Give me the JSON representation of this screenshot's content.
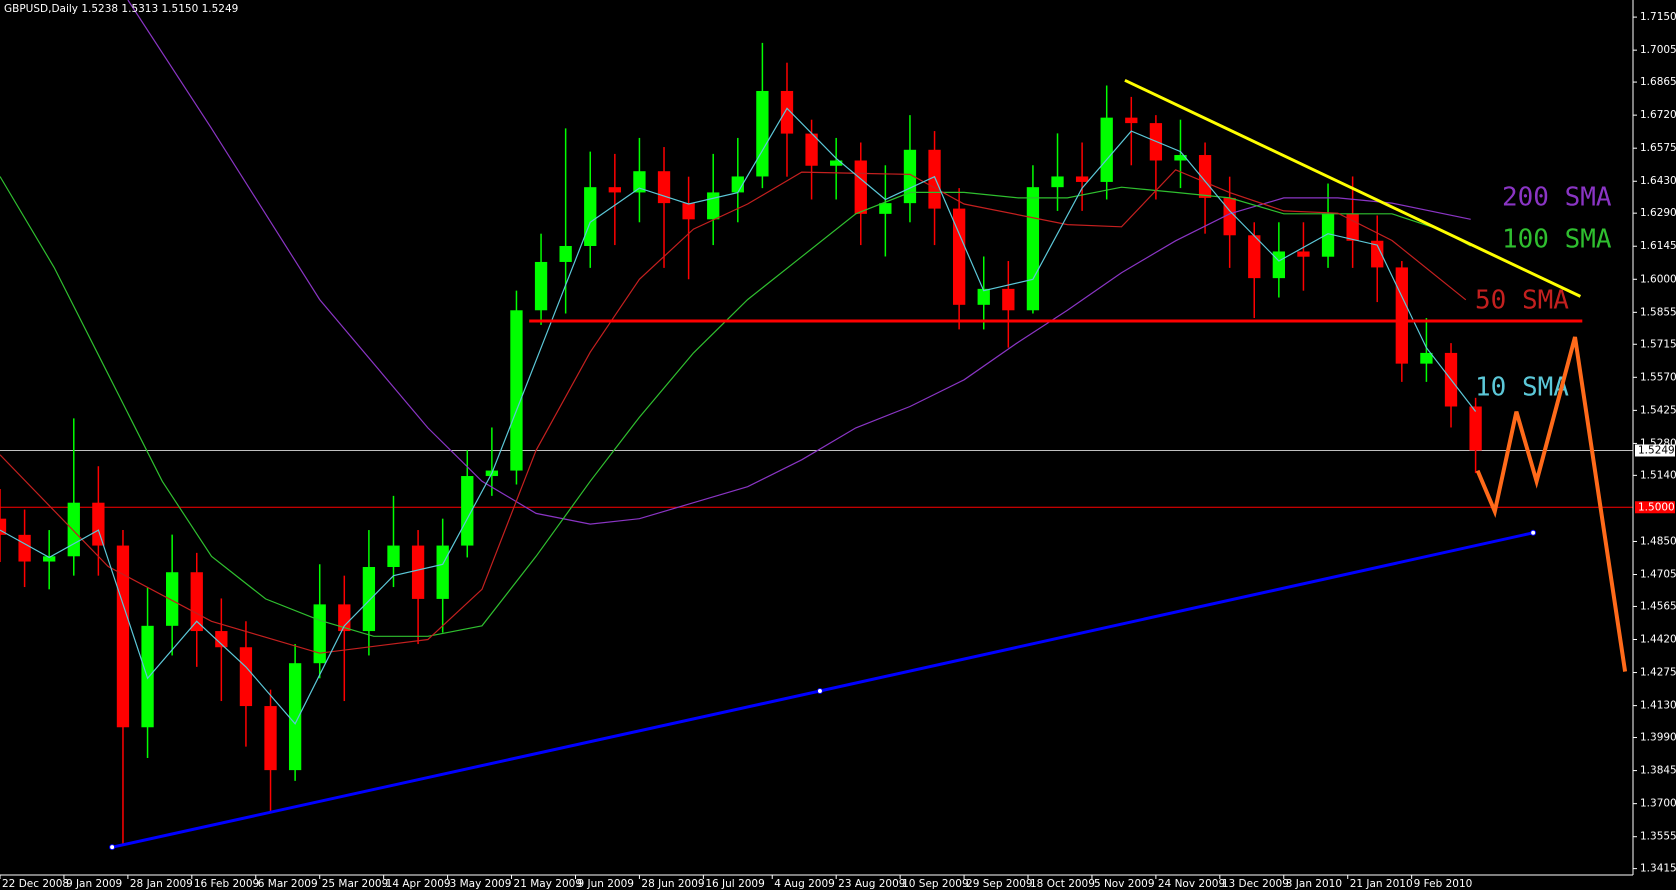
{
  "chart_data": {
    "type": "candlestick",
    "title": "GBPUSD,Daily  1.5238 1.5313 1.5150 1.5249",
    "xlim": [
      0,
      332
    ],
    "ylim": [
      1.3387,
      1.7225
    ],
    "xticks": [
      {
        "value": 0,
        "label": "22 Dec 2008"
      },
      {
        "value": 13,
        "label": "9 Jan 2009"
      },
      {
        "value": 26,
        "label": "28 Jan 2009"
      },
      {
        "value": 39,
        "label": "16 Feb 2009"
      },
      {
        "value": 52,
        "label": "6 Mar 2009"
      },
      {
        "value": 65,
        "label": "25 Mar 2009"
      },
      {
        "value": 78,
        "label": "14 Apr 2009"
      },
      {
        "value": 91,
        "label": "3 May 2009"
      },
      {
        "value": 104,
        "label": "21 May 2009"
      },
      {
        "value": 117,
        "label": "9 Jun 2009"
      },
      {
        "value": 130,
        "label": "28 Jun 2009"
      },
      {
        "value": 143,
        "label": "16 Jul 2009"
      },
      {
        "value": 157,
        "label": "4 Aug 2009"
      },
      {
        "value": 170,
        "label": "23 Aug 2009"
      },
      {
        "value": 183,
        "label": "10 Sep 2009"
      },
      {
        "value": 196,
        "label": "29 Sep 2009"
      },
      {
        "value": 209,
        "label": "18 Oct 2009"
      },
      {
        "value": 222,
        "label": "5 Nov 2009"
      },
      {
        "value": 235,
        "label": "24 Nov 2009"
      },
      {
        "value": 248,
        "label": "13 Dec 2009"
      },
      {
        "value": 261,
        "label": "3 Jan 2010"
      },
      {
        "value": 274,
        "label": "21 Jan 2010"
      },
      {
        "value": 287,
        "label": "9 Feb 2010"
      }
    ],
    "yticks": [
      {
        "value": 1.715,
        "label": "1.7150"
      },
      1.7005,
      1.6865,
      {
        "value": 1.672,
        "label": "1.6720"
      },
      1.6575,
      {
        "value": 1.643,
        "label": "1.6430"
      },
      {
        "value": 1.629,
        "label": "1.6290"
      },
      1.6145,
      {
        "value": 1.6,
        "label": "1.6000"
      },
      1.5855,
      1.5715,
      {
        "value": 1.557,
        "label": "1.5570"
      },
      1.5425,
      {
        "value": 1.528,
        "label": "1.5280"
      },
      {
        "value": 1.514,
        "label": "1.5140"
      },
      {
        "value": 1.485,
        "label": "1.4850"
      },
      1.4705,
      1.4565,
      {
        "value": 1.442,
        "label": "1.4420"
      },
      1.4275,
      {
        "value": 1.413,
        "label": "1.4130"
      },
      {
        "value": 1.399,
        "label": "1.3990"
      },
      1.3845,
      {
        "value": 1.37,
        "label": "1.3700"
      },
      1.3555,
      1.3415
    ],
    "candles": {
      "up_color": "#00ff00",
      "down_color": "#ff0000",
      "x": [
        0,
        5,
        10,
        15,
        20,
        25,
        30,
        35,
        40,
        45,
        50,
        55,
        60,
        65,
        70,
        75,
        80,
        85,
        90,
        95,
        100,
        105,
        110,
        115,
        120,
        125,
        130,
        135,
        140,
        145,
        150,
        155,
        160,
        165,
        170,
        175,
        180,
        185,
        190,
        195,
        200,
        205,
        210,
        215,
        220,
        225,
        230,
        235,
        240,
        245,
        250,
        255,
        260,
        265,
        270,
        275,
        280,
        285,
        290,
        295,
        300
      ],
      "open": [
        1.495,
        1.4879,
        1.4762,
        1.4785,
        1.502,
        1.4832,
        1.4035,
        1.448,
        1.4715,
        1.4457,
        1.4386,
        1.4128,
        1.3847,
        1.4316,
        1.4574,
        1.4457,
        1.4738,
        1.4832,
        1.4598,
        1.4832,
        1.5137,
        1.5161,
        1.5864,
        1.6076,
        1.6146,
        1.6404,
        1.6381,
        1.6474,
        1.6334,
        1.6263,
        1.6381,
        1.6451,
        1.6826,
        1.6639,
        1.6498,
        1.6521,
        1.6287,
        1.6334,
        1.6568,
        1.631,
        1.5888,
        1.5958,
        1.5864,
        1.6404,
        1.6451,
        1.6427,
        1.6709,
        1.6685,
        1.6521,
        1.6545,
        1.6357,
        1.6193,
        1.6005,
        1.6122,
        1.6099,
        1.6287,
        1.6169,
        1.6052,
        1.563,
        1.5677,
        1.5442
      ],
      "high": [
        1.508,
        1.499,
        1.49,
        1.539,
        1.518,
        1.49,
        1.465,
        1.488,
        1.48,
        1.46,
        1.45,
        1.42,
        1.44,
        1.475,
        1.47,
        1.49,
        1.505,
        1.49,
        1.495,
        1.525,
        1.535,
        1.595,
        1.62,
        1.6662,
        1.656,
        1.655,
        1.662,
        1.658,
        1.645,
        1.655,
        1.662,
        1.7037,
        1.695,
        1.67,
        1.662,
        1.66,
        1.65,
        1.672,
        1.665,
        1.64,
        1.61,
        1.608,
        1.65,
        1.664,
        1.66,
        1.685,
        1.68,
        1.672,
        1.67,
        1.66,
        1.645,
        1.625,
        1.625,
        1.625,
        1.642,
        1.6451,
        1.628,
        1.608,
        1.583,
        1.572,
        1.548
      ],
      "low": [
        1.476,
        1.465,
        1.464,
        1.47,
        1.47,
        1.3518,
        1.39,
        1.435,
        1.43,
        1.415,
        1.395,
        1.3659,
        1.38,
        1.425,
        1.415,
        1.435,
        1.465,
        1.44,
        1.445,
        1.478,
        1.505,
        1.51,
        1.58,
        1.585,
        1.605,
        1.615,
        1.625,
        1.605,
        1.6,
        1.615,
        1.625,
        1.64,
        1.645,
        1.635,
        1.635,
        1.615,
        1.61,
        1.625,
        1.615,
        1.578,
        1.578,
        1.57,
        1.585,
        1.63,
        1.63,
        1.635,
        1.65,
        1.635,
        1.64,
        1.62,
        1.605,
        1.583,
        1.592,
        1.595,
        1.605,
        1.605,
        1.59,
        1.555,
        1.555,
        1.535,
        1.515
      ],
      "close": [
        1.4879,
        1.4762,
        1.4785,
        1.502,
        1.4832,
        1.4035,
        1.448,
        1.4715,
        1.4457,
        1.4386,
        1.4128,
        1.3847,
        1.4316,
        1.4574,
        1.4457,
        1.4738,
        1.4832,
        1.4598,
        1.4832,
        1.5137,
        1.5161,
        1.5864,
        1.6076,
        1.6146,
        1.6404,
        1.6381,
        1.6474,
        1.6334,
        1.6263,
        1.6381,
        1.6451,
        1.6826,
        1.6639,
        1.6498,
        1.6521,
        1.6287,
        1.6334,
        1.6568,
        1.631,
        1.5888,
        1.5958,
        1.5864,
        1.6404,
        1.6451,
        1.6427,
        1.6709,
        1.6685,
        1.6521,
        1.6545,
        1.6357,
        1.6193,
        1.6005,
        1.6122,
        1.6099,
        1.6287,
        1.6169,
        1.6052,
        1.563,
        1.5677,
        1.5442,
        1.5249
      ]
    },
    "series": [
      {
        "name": "200 SMA",
        "color": "#8a35c4",
        "x": [
          26,
          43,
          65,
          87,
          98,
          109,
          120,
          130,
          141,
          152,
          163,
          174,
          185,
          196,
          207,
          217,
          228,
          239,
          250,
          261,
          272,
          283,
          299
        ],
        "values": [
          1.7225,
          1.6662,
          1.5911,
          1.5348,
          1.5114,
          1.4973,
          1.4926,
          1.495,
          1.502,
          1.509,
          1.5208,
          1.5348,
          1.5442,
          1.5559,
          1.5724,
          1.5864,
          1.6029,
          1.6169,
          1.6287,
          1.6357,
          1.6357,
          1.6334,
          1.6263
        ]
      },
      {
        "name": "100 SMA",
        "color": "#2fbf2f",
        "x": [
          0,
          11,
          22,
          33,
          43,
          54,
          65,
          76,
          87,
          98,
          109,
          120,
          130,
          141,
          152,
          163,
          174,
          185,
          196,
          207,
          217,
          228,
          239,
          250,
          261,
          272,
          283,
          293,
          299
        ],
        "values": [
          1.6451,
          1.6052,
          1.5583,
          1.5114,
          1.4785,
          1.4598,
          1.4504,
          1.4434,
          1.4434,
          1.448,
          1.4785,
          1.5114,
          1.5395,
          1.5677,
          1.5911,
          1.6099,
          1.6287,
          1.6381,
          1.6381,
          1.6357,
          1.6357,
          1.6404,
          1.6381,
          1.6357,
          1.6287,
          1.6287,
          1.6287,
          1.6216,
          1.6146
        ]
      },
      {
        "name": "50 SMA",
        "color": "#c4201f",
        "x": [
          0,
          22,
          43,
          65,
          87,
          98,
          109,
          120,
          130,
          141,
          152,
          163,
          185,
          196,
          217,
          228,
          239,
          250,
          261,
          272,
          283,
          298
        ],
        "values": [
          1.523,
          1.474,
          1.45,
          1.436,
          1.442,
          1.464,
          1.525,
          1.568,
          1.6,
          1.622,
          1.633,
          1.647,
          1.646,
          1.633,
          1.624,
          1.623,
          1.648,
          1.638,
          1.63,
          1.629,
          1.617,
          1.591
        ]
      },
      {
        "name": "10 SMA",
        "color": "#5cc8d8",
        "x": [
          0,
          10,
          20,
          30,
          40,
          50,
          60,
          70,
          80,
          90,
          100,
          110,
          120,
          130,
          140,
          150,
          160,
          170,
          180,
          190,
          200,
          210,
          220,
          230,
          240,
          250,
          260,
          270,
          280,
          290,
          300
        ],
        "values": [
          1.49,
          1.478,
          1.49,
          1.425,
          1.45,
          1.43,
          1.405,
          1.448,
          1.47,
          1.475,
          1.515,
          1.57,
          1.625,
          1.64,
          1.633,
          1.638,
          1.675,
          1.653,
          1.635,
          1.645,
          1.595,
          1.6,
          1.64,
          1.665,
          1.656,
          1.63,
          1.608,
          1.62,
          1.615,
          1.57,
          1.542
        ]
      }
    ],
    "drawings": [
      {
        "color": "#ffff00",
        "x": [
          228.7,
          321.3
        ],
        "y": [
          1.6873,
          1.5925
        ]
      },
      {
        "color": "#ff0000",
        "x": [
          107.6,
          321.7
        ],
        "y": [
          1.5817,
          1.5817
        ]
      },
      {
        "color": "#0000ff",
        "x": [
          22.8,
          166.7,
          311.7
        ],
        "y": [
          1.3509,
          1.4194,
          1.4888
        ]
      },
      {
        "color": "#ff6a1a",
        "x": [
          300.4,
          303.9,
          308.3,
          312.4,
          320.2,
          330.4
        ],
        "y": [
          1.5161,
          1.4982,
          1.5419,
          1.5114,
          1.5747,
          1.4279
        ]
      }
    ],
    "current_price": 1.5249,
    "current_price_color": "#c0c0c0",
    "level": {
      "value": 1.5,
      "label": "1.5000"
    },
    "level_color": "#ff0000"
  }
}
